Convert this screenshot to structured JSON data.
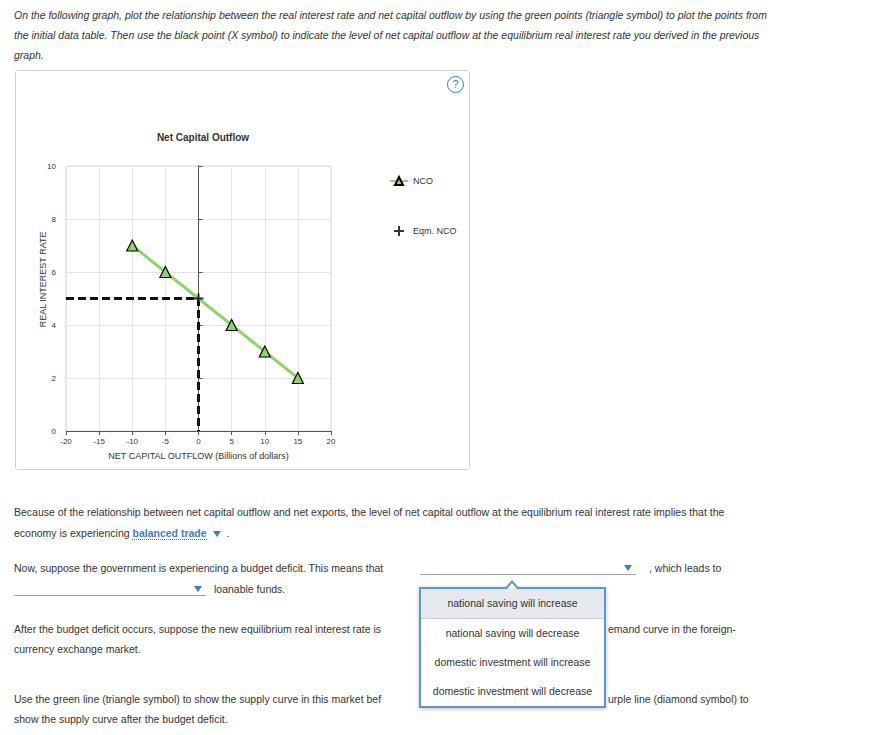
{
  "instructions": "On the following graph, plot the relationship between the real interest rate and net capital outflow by using the green points (triangle symbol) to plot the points from the initial data table. Then use the black point (X symbol) to indicate the level of net capital outflow at the equilibrium real interest rate you derived in the previous graph.",
  "help_icon": "?",
  "chart_data": {
    "type": "line",
    "title": "Net Capital Outflow",
    "x_label": "NET CAPITAL OUTFLOW (Billions of dollars)",
    "y_label": "REAL INTEREST RATE",
    "xlim": [
      -20,
      20
    ],
    "xticks": [
      -20,
      -15,
      -10,
      -5,
      0,
      5,
      10,
      15,
      20
    ],
    "ylim": [
      0,
      10
    ],
    "yticks": [
      0,
      2,
      4,
      6,
      8,
      10
    ],
    "grid": true,
    "legend": "right",
    "series": [
      {
        "name": "NCO",
        "type": "line",
        "color": "#8fd468",
        "marker": "triangle",
        "x": [
          -10,
          -5,
          5,
          10,
          15
        ],
        "values": [
          7,
          6,
          4,
          3,
          2
        ]
      },
      {
        "name": "Eqm. NCO",
        "type": "scatter",
        "color": "#000000",
        "marker": "cross",
        "line_style": "dashed",
        "x": [
          0
        ],
        "values": [
          5
        ]
      }
    ]
  },
  "question_1": {
    "text_before": "Because of the relationship between net capital outflow and net exports, the level of net capital outflow at the equilibrium real interest rate implies that the economy is experiencing",
    "selected": "balanced trade",
    "text_after": "."
  },
  "question_2": {
    "text_before": "Now, suppose the government is experiencing a budget deficit. This means that",
    "text_middle": ", which leads to",
    "text_after": "loanable funds."
  },
  "question_3": {
    "text_before": "After the budget deficit occurs, suppose the new equilibrium real interest rate is",
    "text_after_lines": [
      "emand curve in the foreign-",
      "currency exchange market."
    ]
  },
  "question_4": {
    "lines": [
      "Use the green line (triangle symbol) to show the supply curve in this market bef",
      "urple line (diamond symbol) to",
      "show the supply curve after the budget deficit."
    ]
  },
  "dropdown": {
    "options": [
      {
        "label": "national saving will increase",
        "highlighted": true
      },
      {
        "label": "national saving will decrease",
        "highlighted": false
      },
      {
        "label": "domestic investment will increase",
        "highlighted": false
      },
      {
        "label": "domestic investment will decrease",
        "highlighted": false
      }
    ]
  }
}
